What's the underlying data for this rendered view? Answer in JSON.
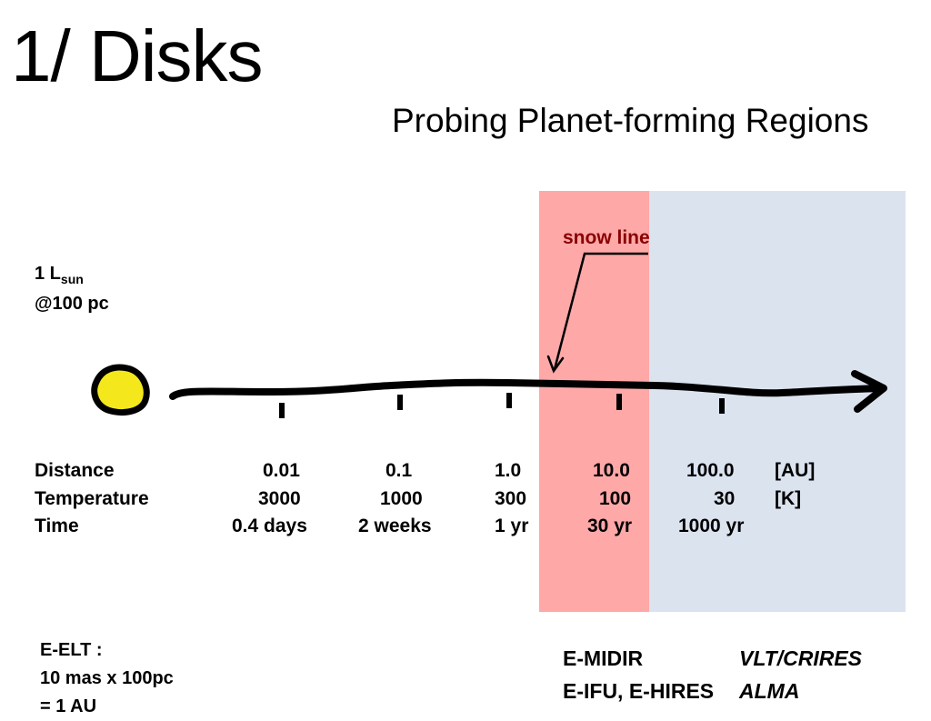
{
  "title": "1/ Disks",
  "subtitle": "Probing Planet-forming Regions",
  "snow_label": "snow line",
  "star": {
    "lum_main": "1 L",
    "lum_sub": "sun",
    "distance": "@100 pc"
  },
  "table": {
    "rows": [
      {
        "label": "Distance",
        "values": [
          "0.01",
          "0.1",
          "1.0",
          "10.0",
          "100.0"
        ],
        "unit": "[AU]"
      },
      {
        "label": "Temperature",
        "values": [
          "3000",
          "1000",
          "300",
          "100",
          "30"
        ],
        "unit": "[K]"
      },
      {
        "label": "Time",
        "values": [
          "0.4 days",
          "2 weeks",
          "1 yr",
          "30 yr",
          "1000 yr"
        ],
        "unit": ""
      }
    ]
  },
  "eelt": {
    "line1": "E-ELT :",
    "line2": "10 mas x 100pc",
    "line3": "= 1 AU"
  },
  "instruments": [
    {
      "elt": "E-MIDIR",
      "other": "VLT/CRIRES"
    },
    {
      "elt": "E-IFU, E-HIRES",
      "other": "ALMA"
    }
  ],
  "colors": {
    "snow_zone": "#ffa8a8",
    "outer_zone": "#dbe3ef",
    "star": "#f4e81c",
    "snow_label": "#8b0000"
  }
}
